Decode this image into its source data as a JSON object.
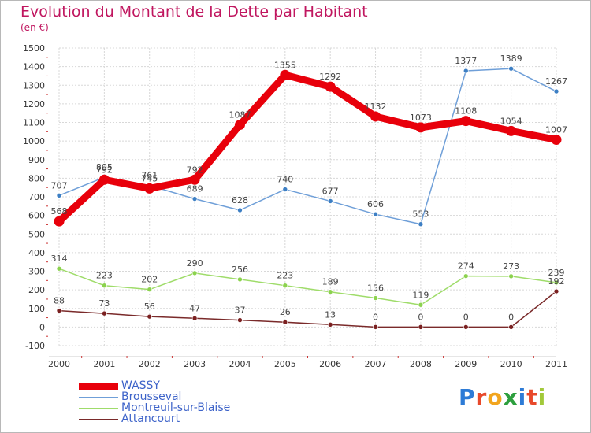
{
  "header": {
    "title": "Evolution du Montant de la Dette par Habitant",
    "subtitle": "(en €)"
  },
  "logo": {
    "text": "Proxiti",
    "colors": [
      "#2d7bd6",
      "#e8492b",
      "#f2a51e",
      "#2d9f3e",
      "#2d7bd6",
      "#e8492b",
      "#a2c93a"
    ]
  },
  "chart_data": {
    "type": "line",
    "title": "Evolution du Montant de la Dette par Habitant",
    "subtitle": "(en €)",
    "x": [
      "2000",
      "2001",
      "2002",
      "2003",
      "2004",
      "2005",
      "2006",
      "2007",
      "2008",
      "2009",
      "2010",
      "2011"
    ],
    "ylim": [
      -100,
      1500
    ],
    "yticks": [
      "-100",
      "0",
      "100",
      "200",
      "300",
      "400",
      "500",
      "600",
      "700",
      "800",
      "900",
      "1000",
      "1100",
      "1200",
      "1300",
      "1400",
      "1500"
    ],
    "grid": true,
    "legend_position": "bottom-left",
    "series": [
      {
        "name": "WASSY",
        "color": "#e8000b",
        "values": [
          568,
          792,
          745,
          792,
          1087,
          1355,
          1292,
          1132,
          1073,
          1108,
          1054,
          1007
        ]
      },
      {
        "name": "Brousseval",
        "color": "#6f9fd8",
        "marker": "#3d7fc4",
        "values": [
          707,
          805,
          761,
          689,
          628,
          740,
          677,
          606,
          553,
          1377,
          1389,
          1267
        ]
      },
      {
        "name": "Montreuil-sur-Blaise",
        "color": "#9fdc6a",
        "marker": "#8cd24e",
        "values": [
          314,
          223,
          202,
          290,
          256,
          223,
          189,
          156,
          119,
          274,
          273,
          239
        ]
      },
      {
        "name": "Attancourt",
        "color": "#7a2a2a",
        "marker": "#7a2020",
        "values": [
          88,
          73,
          56,
          47,
          37,
          26,
          13,
          0,
          0,
          0,
          0,
          192
        ]
      }
    ],
    "value_labels": [
      [
        "568",
        "792",
        "745",
        "792",
        "1087",
        "1355",
        "1292",
        "1132",
        "1073",
        "1108",
        "1054",
        "1007"
      ],
      [
        "707",
        "805",
        "761",
        "689",
        "628",
        "740",
        "677",
        "606",
        "553",
        "1377",
        "1389",
        "1267"
      ],
      [
        "314",
        "223",
        "202",
        "290",
        "256",
        "223",
        "189",
        "156",
        "119",
        "274",
        "273",
        "239"
      ],
      [
        "88",
        "73",
        "56",
        "47",
        "37",
        "26",
        "13",
        "0",
        "0",
        "0",
        "0",
        "192"
      ]
    ]
  }
}
